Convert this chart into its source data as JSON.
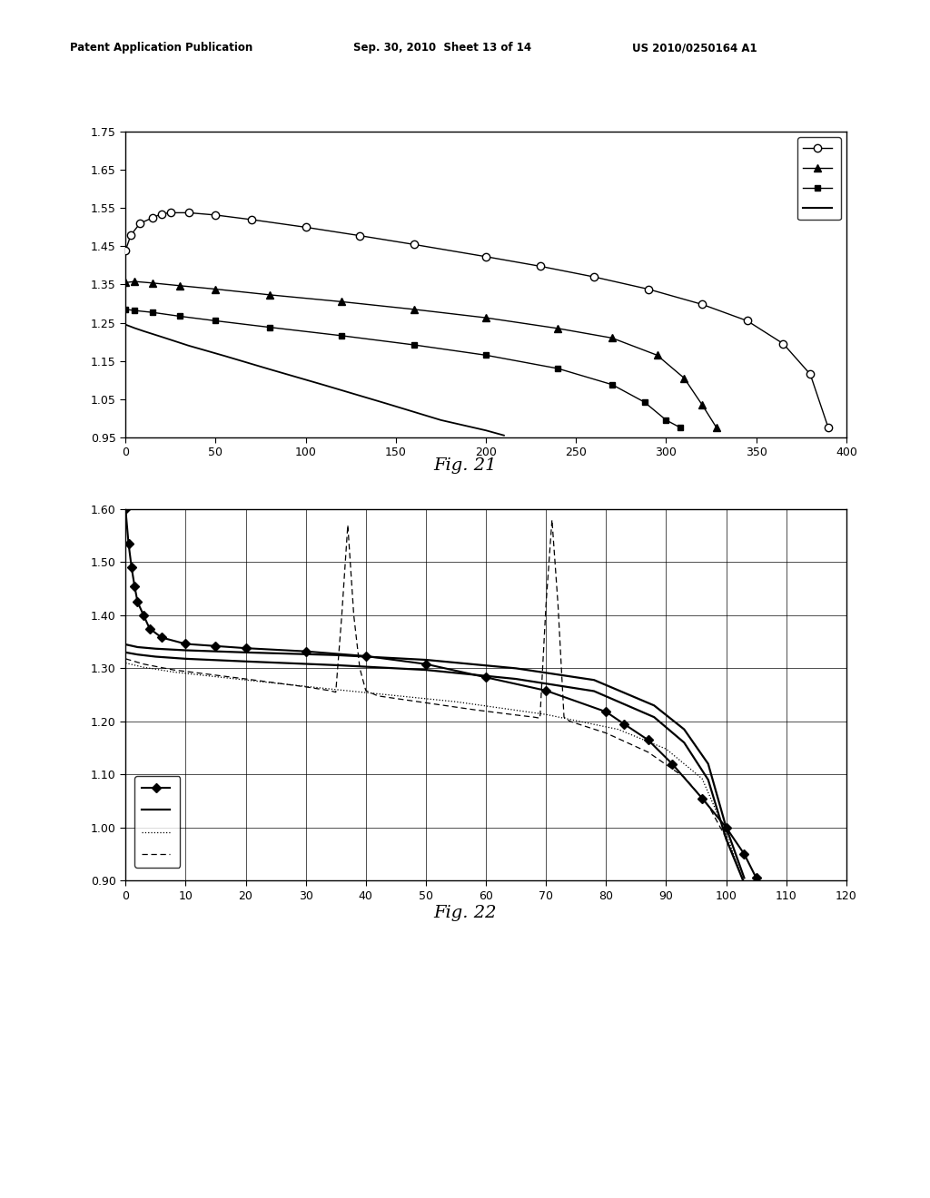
{
  "fig21": {
    "xlim": [
      0,
      400
    ],
    "ylim": [
      0.95,
      1.75
    ],
    "xticks": [
      0,
      50,
      100,
      150,
      200,
      250,
      300,
      350,
      400
    ],
    "yticks": [
      0.95,
      1.05,
      1.15,
      1.25,
      1.35,
      1.45,
      1.55,
      1.65,
      1.75
    ],
    "ytick_labels": [
      "0.95",
      "1.05",
      "1.15",
      "1.25",
      "1.35",
      "1.45",
      "1.55",
      "1.65",
      "1.75"
    ]
  },
  "fig22": {
    "xlim": [
      0,
      120
    ],
    "ylim": [
      0.9,
      1.6
    ],
    "xticks": [
      0,
      10,
      20,
      30,
      40,
      50,
      60,
      70,
      80,
      90,
      100,
      110,
      120
    ],
    "yticks": [
      0.9,
      1.0,
      1.1,
      1.2,
      1.3,
      1.4,
      1.5,
      1.6
    ],
    "ytick_labels": [
      "0.90",
      "1.00",
      "1.10",
      "1.20",
      "1.30",
      "1.40",
      "1.50",
      "1.60"
    ]
  }
}
